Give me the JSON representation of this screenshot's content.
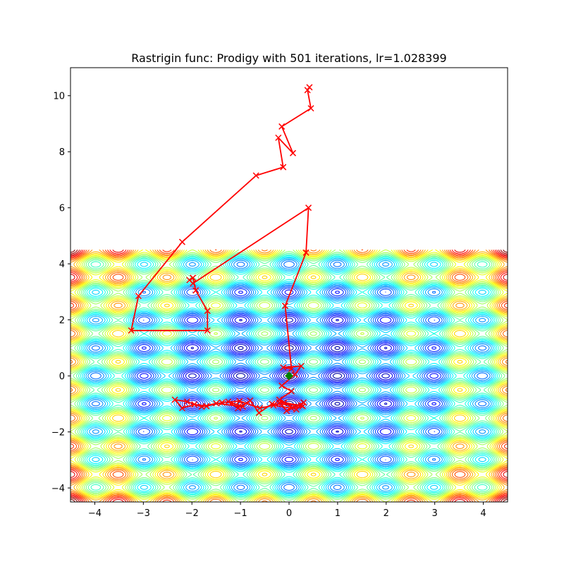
{
  "chart_data": {
    "type": "contour",
    "title": "Rastrigin func: Prodigy with 501 iterations, lr=1.028399",
    "xlim": [
      -4.5,
      4.5
    ],
    "ylim": [
      -4.5,
      11.0
    ],
    "contour_region": {
      "x": [
        -4.5,
        4.5
      ],
      "y": [
        -4.5,
        4.5
      ]
    },
    "colormap": "jet",
    "x_ticks": [
      -4,
      -3,
      -2,
      -1,
      0,
      1,
      2,
      3,
      4
    ],
    "y_ticks": [
      -4,
      -2,
      0,
      2,
      4,
      6,
      8,
      10
    ],
    "x_tick_labels": [
      "−4",
      "−3",
      "−2",
      "−1",
      "0",
      "1",
      "2",
      "3",
      "4"
    ],
    "y_tick_labels": [
      "−4",
      "−2",
      "0",
      "2",
      "4",
      "6",
      "8",
      "10"
    ],
    "grid": false,
    "path_color": "#ff0000",
    "minimum_marker_color": "#008000",
    "global_minimum": [
      0,
      0
    ],
    "path": [
      [
        0.42,
        10.3
      ],
      [
        0.38,
        10.2
      ],
      [
        0.45,
        9.55
      ],
      [
        -0.15,
        8.9
      ],
      [
        0.08,
        7.95
      ],
      [
        -0.22,
        8.5
      ],
      [
        -0.12,
        7.45
      ],
      [
        -0.68,
        7.15
      ],
      [
        -2.2,
        4.78
      ],
      [
        -3.1,
        2.85
      ],
      [
        -3.25,
        1.62
      ],
      [
        -1.68,
        1.62
      ],
      [
        -1.68,
        2.32
      ],
      [
        -1.92,
        3.05
      ],
      [
        -1.98,
        3.5
      ],
      [
        -2.05,
        3.42
      ],
      [
        -1.98,
        3.3
      ],
      [
        0.4,
        6.0
      ],
      [
        0.35,
        4.4
      ],
      [
        -0.08,
        2.5
      ],
      [
        0.05,
        0.25
      ],
      [
        -0.12,
        0.3
      ],
      [
        0.25,
        0.35
      ],
      [
        0.12,
        0.05
      ],
      [
        -0.15,
        -0.35
      ],
      [
        0.05,
        -0.55
      ],
      [
        -0.2,
        -0.85
      ],
      [
        0.15,
        -1.2
      ],
      [
        0.3,
        -0.95
      ],
      [
        -0.05,
        -1.25
      ],
      [
        -0.2,
        -0.95
      ],
      [
        0.25,
        -1.05
      ],
      [
        -0.35,
        -1.0
      ],
      [
        -0.62,
        -1.32
      ],
      [
        -0.8,
        -0.88
      ],
      [
        -1.05,
        -1.15
      ],
      [
        -1.25,
        -0.92
      ],
      [
        -0.95,
        -1.1
      ],
      [
        -1.5,
        -0.98
      ],
      [
        -1.8,
        -1.1
      ],
      [
        -2.1,
        -0.92
      ],
      [
        -2.35,
        -0.85
      ],
      [
        -2.2,
        -1.15
      ],
      [
        -1.95,
        -1.02
      ],
      [
        -1.7,
        -1.08
      ],
      [
        -1.38,
        -0.95
      ],
      [
        -1.02,
        -0.9
      ],
      [
        -0.6,
        -1.15
      ],
      [
        -0.32,
        -1.05
      ],
      [
        0.05,
        -1.15
      ],
      [
        0.28,
        -1.08
      ],
      [
        -0.1,
        -0.95
      ]
    ]
  }
}
